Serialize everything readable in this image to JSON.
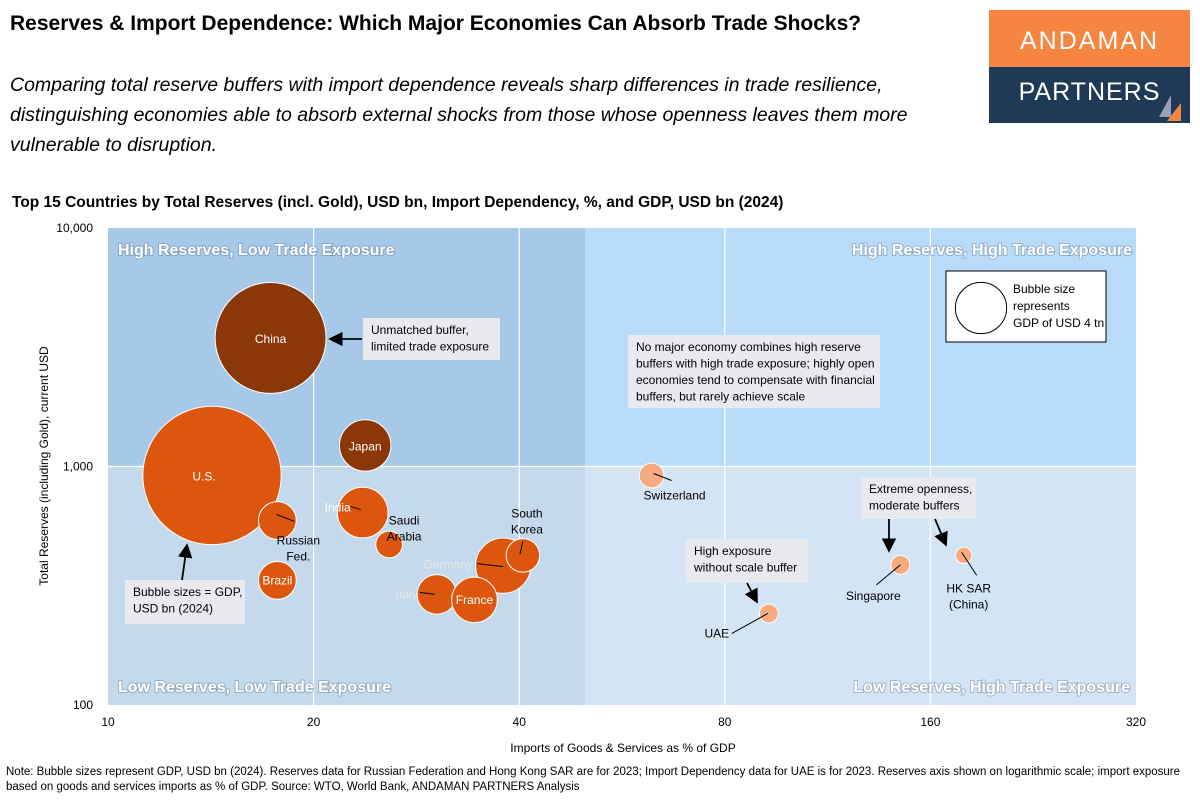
{
  "header": {
    "title": "Reserves & Import Dependence: Which Major Economies Can Absorb Trade Shocks?",
    "subtitle": "Comparing total reserve buffers with import dependence reveals sharp differences in trade resilience, distinguishing economies able to absorb external shocks from those whose openness leaves them more vulnerable to disruption.",
    "logo": {
      "line1": "ANDAMAN",
      "line2": "PARTNERS"
    }
  },
  "colors": {
    "high_reserves": "#8B3707",
    "low_reserves_low_exposure": "#DC570D",
    "high_exposure": "#F6AA80",
    "quad_top_left": "#A6C9EA",
    "quad_top_right": "#B8DBFA",
    "quad_bottom_left": "#C4D9EC",
    "quad_bottom_right": "#D3E4F4",
    "logo_orange": "#F58541",
    "logo_navy": "#1E3A56"
  },
  "chart_data": {
    "type": "scatter",
    "title": "Top 15 Countries by Total Reserves (incl. Gold), USD bn, Import Dependency, %, and GDP, USD bn (2024)",
    "xlabel": "Imports of Goods & Services as % of GDP",
    "ylabel": "Total Reserves (including Gold), current USD",
    "x_scale": "log",
    "y_scale": "log",
    "xlim": [
      10,
      320
    ],
    "ylim": [
      100,
      10000
    ],
    "x_ticks": [
      "10",
      "20",
      "40",
      "80",
      "160",
      "320"
    ],
    "x_tick_values": [
      10,
      20,
      40,
      80,
      160,
      320
    ],
    "y_ticks": [
      "10,000",
      "1,000",
      "100"
    ],
    "y_tick_values": [
      10000,
      1000,
      100
    ],
    "grid": true,
    "quadrant_split": {
      "x": 50,
      "y": 1000
    },
    "quadrants": {
      "top_left": "High Reserves, Low Trade Exposure",
      "top_right": "High Reserves, High Trade Exposure",
      "bottom_left": "Low Reserves, Low Trade Exposure",
      "bottom_right": "Low Reserves, High Trade Exposure"
    },
    "size_legend": {
      "text": [
        "Bubble size",
        "represents",
        "GDP of USD 4 tn"
      ],
      "gdp": 4000
    },
    "points": [
      {
        "name": "China",
        "label": [
          "China"
        ],
        "x": 17.3,
        "y": 3460,
        "gdp": 18744,
        "group": "high_reserves"
      },
      {
        "name": "U.S.",
        "label": [
          "U.S."
        ],
        "x": 14.2,
        "y": 917,
        "gdp": 29185,
        "group": "low_reserves_low_exposure"
      },
      {
        "name": "Japan",
        "label": [
          "Japan"
        ],
        "x": 23.8,
        "y": 1225,
        "gdp": 4026,
        "group": "high_reserves"
      },
      {
        "name": "India",
        "label": [
          "India"
        ],
        "x": 23.6,
        "y": 641,
        "gdp": 3912,
        "group": "low_reserves_low_exposure"
      },
      {
        "name": "Russian Fed.",
        "label": [
          "Russian",
          "Fed."
        ],
        "x": 17.7,
        "y": 594,
        "gdp": 2174,
        "group": "low_reserves_low_exposure"
      },
      {
        "name": "Saudi Arabia",
        "label": [
          "Saudi",
          "Arabia"
        ],
        "x": 25.8,
        "y": 471,
        "gdp": 1085,
        "group": "low_reserves_low_exposure"
      },
      {
        "name": "Brazil",
        "label": [
          "Brazil"
        ],
        "x": 17.7,
        "y": 333,
        "gdp": 2171,
        "group": "low_reserves_low_exposure"
      },
      {
        "name": "Germany",
        "label": [
          "Germany"
        ],
        "x": 37.9,
        "y": 384,
        "gdp": 4659,
        "group": "low_reserves_low_exposure"
      },
      {
        "name": "South Korea",
        "label": [
          "South",
          "Korea"
        ],
        "x": 40.5,
        "y": 424,
        "gdp": 1713,
        "group": "low_reserves_low_exposure"
      },
      {
        "name": "Italy",
        "label": [
          "Italy"
        ],
        "x": 30.3,
        "y": 291,
        "gdp": 2373,
        "group": "low_reserves_low_exposure"
      },
      {
        "name": "France",
        "label": [
          "France"
        ],
        "x": 34.4,
        "y": 276,
        "gdp": 3162,
        "group": "low_reserves_low_exposure"
      },
      {
        "name": "Switzerland",
        "label": [
          "Switzerland"
        ],
        "x": 62.5,
        "y": 917,
        "gdp": 936,
        "group": "high_exposure"
      },
      {
        "name": "UAE",
        "label": [
          "UAE"
        ],
        "x": 92.8,
        "y": 242,
        "gdp": 537,
        "group": "high_exposure"
      },
      {
        "name": "Singapore",
        "label": [
          "Singapore"
        ],
        "x": 144.6,
        "y": 387,
        "gdp": 547,
        "group": "high_exposure"
      },
      {
        "name": "HK SAR (China)",
        "label": [
          "HK SAR",
          "(China)"
        ],
        "x": 179,
        "y": 424,
        "gdp": 407,
        "group": "high_exposure"
      }
    ],
    "annotations": [
      {
        "id": "china",
        "text": [
          "Unmatched buffer,",
          "limited trade exposure"
        ]
      },
      {
        "id": "bubble",
        "text": [
          "Bubble sizes = GDP,",
          "USD bn (2024)"
        ]
      },
      {
        "id": "nomajor",
        "text": [
          "No major economy combines high reserve",
          "buffers with high trade exposure; highly open",
          "economies tend to compensate with financial",
          "buffers, but rarely achieve scale"
        ]
      },
      {
        "id": "extreme",
        "text": [
          "Extreme openness,",
          "moderate buffers"
        ]
      },
      {
        "id": "uae",
        "text": [
          "High exposure",
          "without scale buffer"
        ]
      }
    ]
  },
  "footer": {
    "note": "Note: Bubble sizes represent GDP, USD bn (2024). Reserves data for Russian Federation and Hong Kong SAR are for 2023; Import Dependency data for UAE is for 2023. Reserves axis shown on logarithmic scale; import exposure based on goods and services imports as % of GDP. Source: WTO, World Bank, ANDAMAN PARTNERS Analysis"
  }
}
